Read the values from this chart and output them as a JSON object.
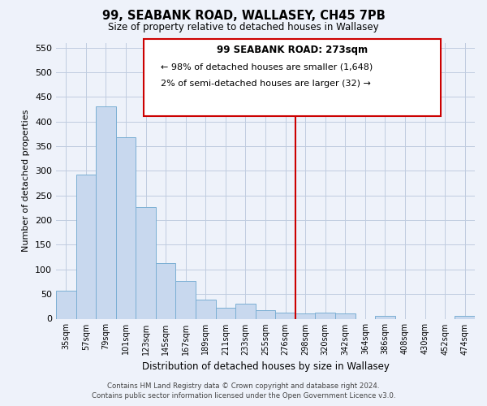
{
  "title": "99, SEABANK ROAD, WALLASEY, CH45 7PB",
  "subtitle": "Size of property relative to detached houses in Wallasey",
  "xlabel": "Distribution of detached houses by size in Wallasey",
  "ylabel": "Number of detached properties",
  "bar_labels": [
    "35sqm",
    "57sqm",
    "79sqm",
    "101sqm",
    "123sqm",
    "145sqm",
    "167sqm",
    "189sqm",
    "211sqm",
    "233sqm",
    "255sqm",
    "276sqm",
    "298sqm",
    "320sqm",
    "342sqm",
    "364sqm",
    "386sqm",
    "408sqm",
    "430sqm",
    "452sqm",
    "474sqm"
  ],
  "bar_values": [
    57,
    293,
    430,
    368,
    227,
    113,
    76,
    38,
    22,
    30,
    18,
    13,
    10,
    12,
    10,
    0,
    5,
    0,
    0,
    0,
    5
  ],
  "bar_color": "#c8d8ee",
  "bar_edge_color": "#7bafd4",
  "vline_x": 11.5,
  "vline_color": "#cc0000",
  "ylim": [
    0,
    560
  ],
  "yticks": [
    0,
    50,
    100,
    150,
    200,
    250,
    300,
    350,
    400,
    450,
    500,
    550
  ],
  "annotation_title": "99 SEABANK ROAD: 273sqm",
  "annotation_line1": "← 98% of detached houses are smaller (1,648)",
  "annotation_line2": "2% of semi-detached houses are larger (32) →",
  "footer_line1": "Contains HM Land Registry data © Crown copyright and database right 2024.",
  "footer_line2": "Contains public sector information licensed under the Open Government Licence v3.0.",
  "background_color": "#eef2fa",
  "grid_color": "#c0cce0"
}
